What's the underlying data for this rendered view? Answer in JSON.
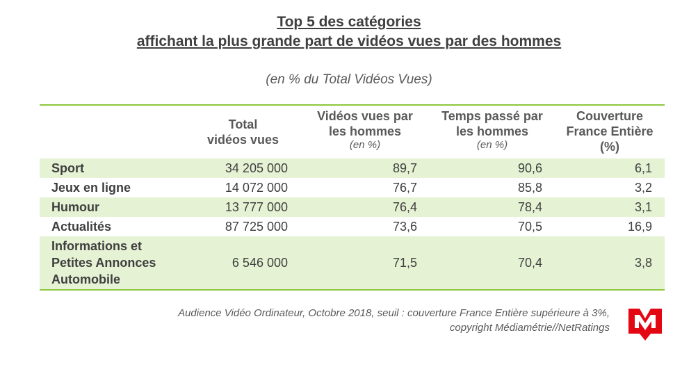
{
  "chart_data": {
    "type": "table",
    "title_line1": "Top 5 des catégories",
    "title_line2": "affichant la plus grande part de vidéos vues par des hommes",
    "subtitle": "(en % du Total Vidéos Vues)",
    "columns": [
      {
        "label_l1": "Total",
        "label_l2": "vidéos vues",
        "label_l3": ""
      },
      {
        "label_l1": "Vidéos vues par",
        "label_l2": "les hommes",
        "label_l3": "(en %)"
      },
      {
        "label_l1": "Temps passé par",
        "label_l2": "les hommes",
        "label_l3": "(en %)"
      },
      {
        "label_l1": "Couverture",
        "label_l2": "France Entière",
        "label_l3": "(%)"
      }
    ],
    "rows": [
      {
        "cat_l1": "Sport",
        "cat_l2": "",
        "cat_l3": "",
        "total": "34 205 000",
        "videos": "89,7",
        "temps": "90,6",
        "couverture": "6,1"
      },
      {
        "cat_l1": "Jeux en ligne",
        "cat_l2": "",
        "cat_l3": "",
        "total": "14 072 000",
        "videos": "76,7",
        "temps": "85,8",
        "couverture": "3,2"
      },
      {
        "cat_l1": "Humour",
        "cat_l2": "",
        "cat_l3": "",
        "total": "13 777 000",
        "videos": "76,4",
        "temps": "78,4",
        "couverture": "3,1"
      },
      {
        "cat_l1": "Actualités",
        "cat_l2": "",
        "cat_l3": "",
        "total": "87 725 000",
        "videos": "73,6",
        "temps": "70,5",
        "couverture": "16,9"
      },
      {
        "cat_l1": "Informations et",
        "cat_l2": "Petites Annonces",
        "cat_l3": "Automobile",
        "total": "6 546 000",
        "videos": "71,5",
        "temps": "70,4",
        "couverture": "3,8"
      }
    ],
    "source_line1": "Audience Vidéo Ordinateur, Octobre 2018, seuil : couverture France Entière supérieure à 3%,",
    "source_line2": "copyright Médiamétrie//NetRatings"
  },
  "colors": {
    "accent": "#8dc63f",
    "row_shade": "#e6f2d4",
    "logo_red": "#e30613"
  },
  "logo": {
    "icon": "mediametrie-logo-icon"
  }
}
